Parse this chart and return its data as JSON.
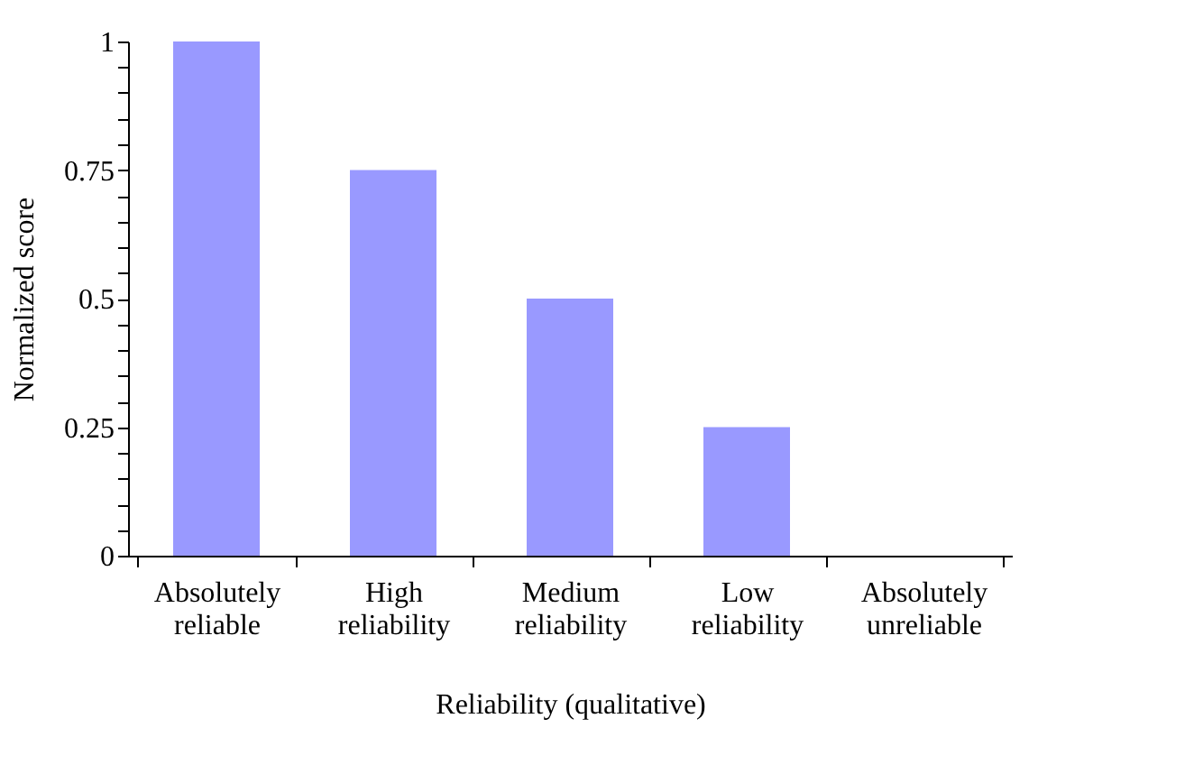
{
  "chart_data": {
    "type": "bar",
    "xlabel": "Reliability (qualitative)",
    "ylabel": "Normalized score",
    "categories": [
      "Absolutely reliable",
      "High reliability",
      "Medium reliability",
      "Low reliability",
      "Absolutely unreliable"
    ],
    "values": [
      1,
      0.75,
      0.5,
      0.25,
      0
    ],
    "color": "#9999ff",
    "ylim": [
      0,
      1
    ],
    "yticks": [
      0,
      {
        "value": 0.05,
        "label": null
      },
      {
        "value": 0.1,
        "label": null
      },
      {
        "value": 0.15,
        "label": null
      },
      {
        "value": 0.2,
        "label": null
      },
      0.25,
      {
        "value": 0.3,
        "label": null
      },
      {
        "value": 0.35,
        "label": null
      },
      {
        "value": 0.4,
        "label": null
      },
      {
        "value": 0.45,
        "label": null
      },
      0.5,
      {
        "value": 0.55,
        "label": null
      },
      {
        "value": 0.6,
        "label": null
      },
      {
        "value": 0.65,
        "label": null
      },
      {
        "value": 0.7,
        "label": null
      },
      0.75,
      {
        "value": 0.8,
        "label": null
      },
      {
        "value": 0.85,
        "label": null
      },
      {
        "value": 0.9,
        "label": null
      },
      {
        "value": 0.95,
        "label": null
      },
      1
    ],
    "grid": false
  }
}
